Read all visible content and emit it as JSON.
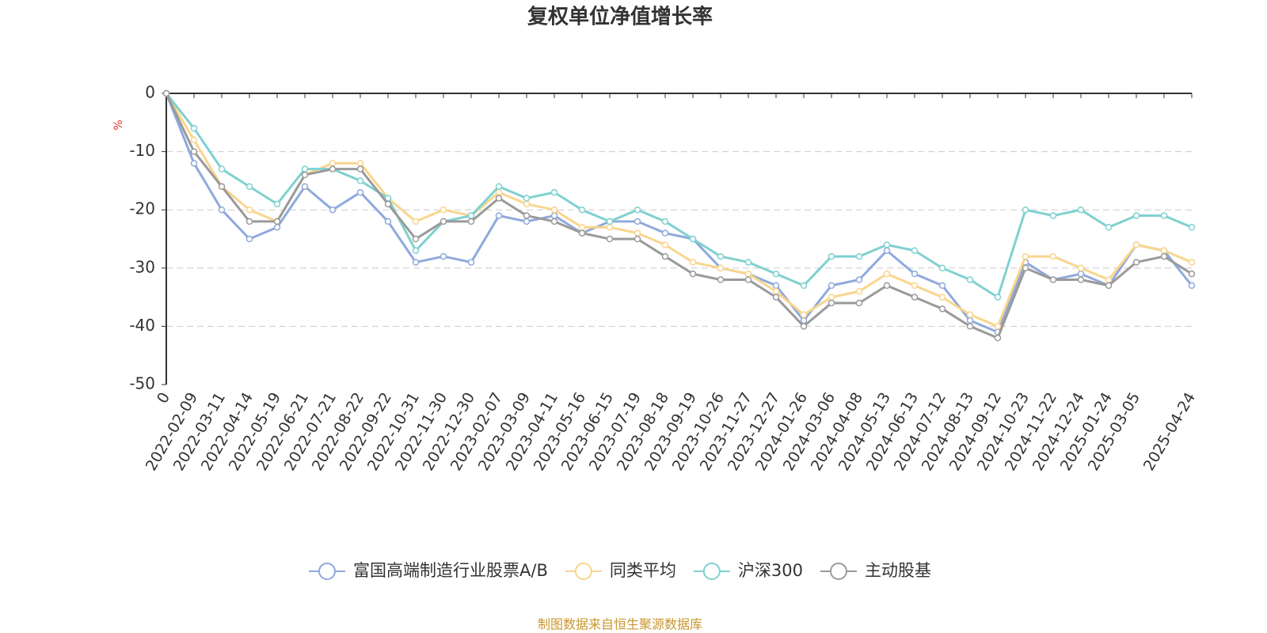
{
  "chart_data": {
    "type": "line",
    "title": "复权单位净值增长率",
    "y_label": "%",
    "source": "制图数据来自恒生聚源数据库",
    "categories": [
      "0",
      "2022-02-09",
      "2022-03-11",
      "2022-04-14",
      "2022-05-19",
      "2022-06-21",
      "2022-07-21",
      "2022-08-22",
      "2022-09-22",
      "2022-10-31",
      "2022-11-30",
      "2022-12-30",
      "2023-02-07",
      "2023-03-09",
      "2023-04-11",
      "2023-05-16",
      "2023-06-15",
      "2023-07-19",
      "2023-08-18",
      "2023-09-19",
      "2023-10-26",
      "2023-11-27",
      "2023-12-27",
      "2024-01-26",
      "2024-03-06",
      "2024-04-08",
      "2024-05-13",
      "2024-06-13",
      "2024-07-12",
      "2024-08-13",
      "2024-09-12",
      "2024-10-23",
      "2024-11-22",
      "2024-12-24",
      "2025-01-24",
      "2025-03-05",
      null,
      "2025-04-24"
    ],
    "series": [
      {
        "name": "富国高端制造行业股票A/B",
        "color": "#8fa9dc",
        "values": [
          0,
          -12,
          -20,
          -25,
          -23,
          -16,
          -20,
          -17,
          -22,
          -29,
          -28,
          -29,
          -21,
          -22,
          -21,
          -24,
          -22,
          -22,
          -24,
          -25,
          -30,
          -31,
          -33,
          -39,
          -33,
          -32,
          -27,
          -31,
          -33,
          -39,
          -41,
          -29,
          -32,
          -31,
          -33,
          -26,
          -27,
          -33
        ]
      },
      {
        "name": "同类平均",
        "color": "#f9d58d",
        "values": [
          0,
          -8,
          -16,
          -20,
          -22,
          -14,
          -12,
          -12,
          -18,
          -22,
          -20,
          -21,
          -17,
          -19,
          -20,
          -23,
          -23,
          -24,
          -26,
          -29,
          -30,
          -31,
          -34,
          -38,
          -35,
          -34,
          -31,
          -33,
          -35,
          -38,
          -40,
          -28,
          -28,
          -30,
          -32,
          -26,
          -27,
          -29
        ]
      },
      {
        "name": "沪深300",
        "color": "#7fd1d0",
        "values": [
          0,
          -6,
          -13,
          -16,
          -19,
          -13,
          -13,
          -15,
          -18,
          -27,
          -22,
          -21,
          -16,
          -18,
          -17,
          -20,
          -22,
          -20,
          -22,
          -25,
          -28,
          -29,
          -31,
          -33,
          -28,
          -28,
          -26,
          -27,
          -30,
          -32,
          -35,
          -20,
          -21,
          -20,
          -23,
          -21,
          -21,
          -23
        ]
      },
      {
        "name": "主动股基",
        "color": "#9a9a9a",
        "values": [
          0,
          -10,
          -16,
          -22,
          -22,
          -14,
          -13,
          -13,
          -19,
          -25,
          -22,
          -22,
          -18,
          -21,
          -22,
          -24,
          -25,
          -25,
          -28,
          -31,
          -32,
          -32,
          -35,
          -40,
          -36,
          -36,
          -33,
          -35,
          -37,
          -40,
          -42,
          -30,
          -32,
          -32,
          -33,
          -29,
          -28,
          -31
        ]
      }
    ],
    "ylim": [
      -50,
      0
    ],
    "yticks": [
      0,
      -10,
      -20,
      -30,
      -40,
      -50
    ],
    "grid": true
  }
}
